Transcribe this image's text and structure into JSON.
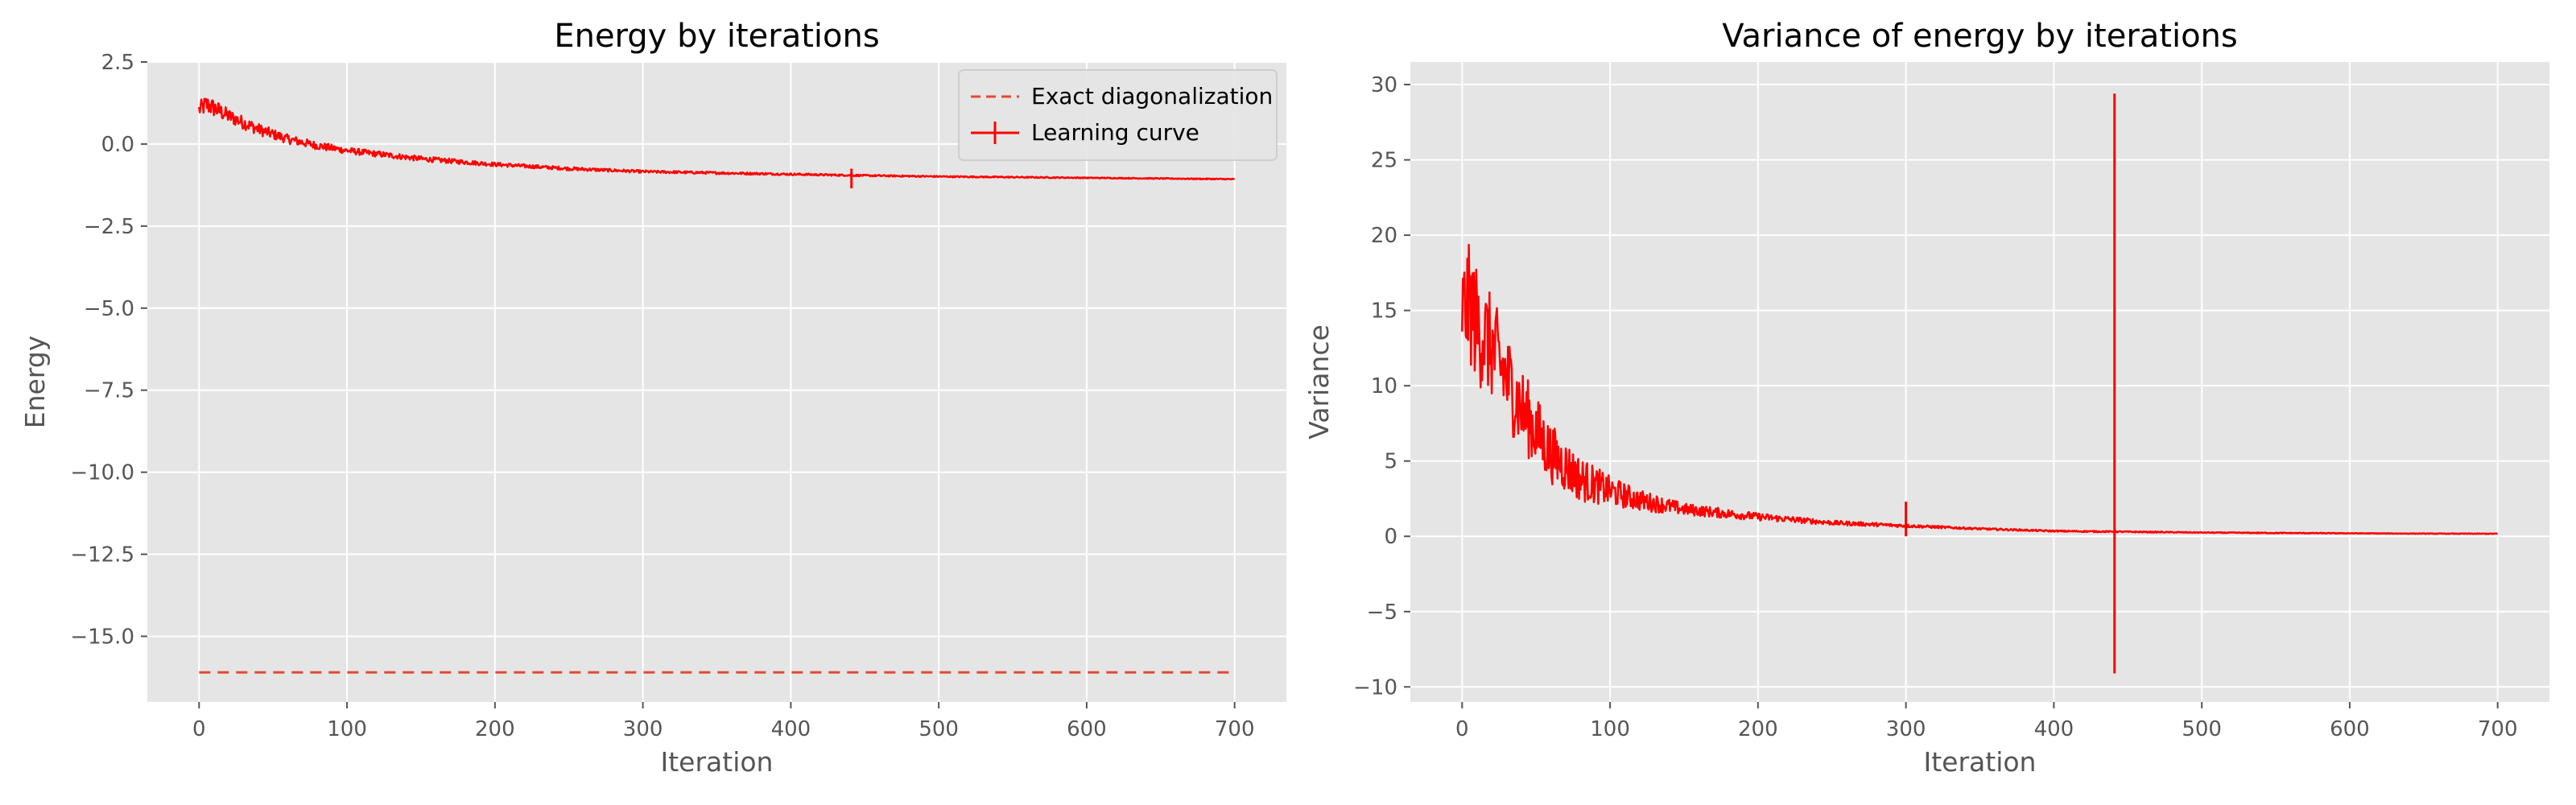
{
  "chart_data": [
    {
      "type": "line",
      "title": "Energy by iterations",
      "xlabel": "Iteration",
      "ylabel": "Energy",
      "xlim": [
        -35,
        735
      ],
      "ylim": [
        -17.0,
        2.5
      ],
      "xticks": [
        0,
        100,
        200,
        300,
        400,
        500,
        600,
        700
      ],
      "xtick_labels": [
        "0",
        "100",
        "200",
        "300",
        "400",
        "500",
        "600",
        "700"
      ],
      "yticks": [
        2.5,
        0.0,
        -2.5,
        -5.0,
        -7.5,
        -10.0,
        -12.5,
        -15.0
      ],
      "ytick_labels": [
        "2.5",
        "0.0",
        "−2.5",
        "−5.0",
        "−7.5",
        "−10.0",
        "−12.5",
        "−15.0"
      ],
      "grid": true,
      "legend": "top-right",
      "series": [
        {
          "name": "Exact diagonalization",
          "style": "dashed",
          "color": "#e24a33",
          "x": [
            0,
            700
          ],
          "y": [
            -16.1,
            -16.1
          ]
        },
        {
          "name": "Learning curve",
          "style": "solid-with-errorbars",
          "color": "#ff0000",
          "x": [
            0,
            5,
            10,
            20,
            30,
            40,
            50,
            60,
            80,
            100,
            120,
            150,
            200,
            250,
            300,
            350,
            400,
            450,
            500,
            550,
            600,
            650,
            700
          ],
          "y": [
            1.05,
            1.2,
            1.1,
            0.85,
            0.65,
            0.45,
            0.3,
            0.15,
            -0.05,
            -0.2,
            -0.3,
            -0.45,
            -0.62,
            -0.75,
            -0.84,
            -0.88,
            -0.92,
            -0.96,
            -0.99,
            -1.01,
            -1.03,
            -1.05,
            -1.07
          ],
          "noise": [
            0.25,
            0.3,
            0.28,
            0.22,
            0.2,
            0.18,
            0.16,
            0.14,
            0.12,
            0.1,
            0.09,
            0.08,
            0.06,
            0.05,
            0.04,
            0.035,
            0.03,
            0.025,
            0.02,
            0.02,
            0.015,
            0.015,
            0.015
          ],
          "errorbar": {
            "x": 441,
            "low": -1.35,
            "high": -0.75
          }
        }
      ]
    },
    {
      "type": "line",
      "title": "Variance of energy by iterations",
      "xlabel": "Iteration",
      "ylabel": "Variance",
      "xlim": [
        -35,
        735
      ],
      "ylim": [
        -11.0,
        31.5
      ],
      "xticks": [
        0,
        100,
        200,
        300,
        400,
        500,
        600,
        700
      ],
      "xtick_labels": [
        "0",
        "100",
        "200",
        "300",
        "400",
        "500",
        "600",
        "700"
      ],
      "yticks": [
        30,
        25,
        20,
        15,
        10,
        5,
        0,
        -5,
        -10
      ],
      "ytick_labels": [
        "30",
        "25",
        "20",
        "15",
        "10",
        "5",
        "0",
        "−5",
        "−10"
      ],
      "grid": true,
      "series": [
        {
          "color": "#ff0000",
          "style": "solid",
          "x": [
            0,
            5,
            10,
            20,
            30,
            40,
            50,
            60,
            80,
            100,
            120,
            150,
            200,
            250,
            300,
            350,
            400,
            450,
            500,
            550,
            600,
            650,
            700
          ],
          "y": [
            15.0,
            15.5,
            14.0,
            12.5,
            10.5,
            8.5,
            7.0,
            5.5,
            3.8,
            3.0,
            2.4,
            1.8,
            1.3,
            0.9,
            0.7,
            0.5,
            0.35,
            0.3,
            0.25,
            0.22,
            0.2,
            0.18,
            0.17
          ],
          "noise": [
            3.5,
            4.0,
            4.0,
            3.5,
            3.2,
            2.8,
            2.4,
            2.0,
            1.5,
            1.0,
            0.7,
            0.4,
            0.25,
            0.15,
            0.1,
            0.06,
            0.05,
            0.04,
            0.03,
            0.03,
            0.02,
            0.02,
            0.02
          ],
          "spikes": [
            {
              "x": 300,
              "low": 0.0,
              "high": 2.3
            },
            {
              "x": 441,
              "low": -9.1,
              "high": 29.4
            }
          ]
        }
      ]
    }
  ]
}
